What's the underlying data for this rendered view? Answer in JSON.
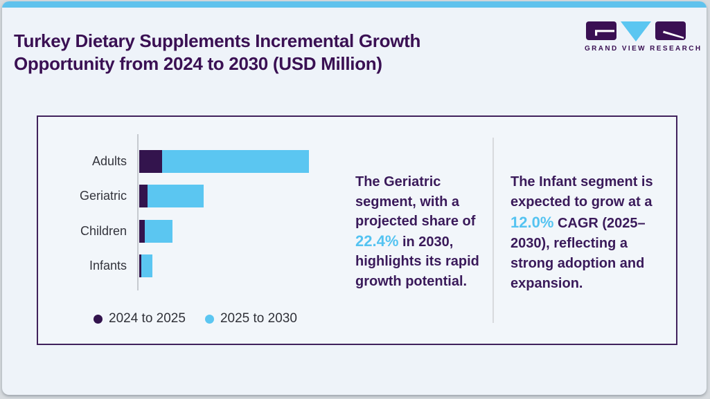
{
  "header": {
    "title": "Turkey Dietary Supplements Incremental Growth Opportunity from 2024 to 2030 (USD Million)",
    "logo_brand": "GRAND VIEW RESEARCH"
  },
  "colors": {
    "title_purple": "#3a1053",
    "series_purple": "#33144d",
    "accent_blue": "#5bc6f1",
    "topbar_blue": "#60c2ed"
  },
  "chart_data": {
    "type": "bar",
    "orientation": "horizontal",
    "stacked": true,
    "title": "Turkey Dietary Supplements Incremental Growth Opportunity from 2024 to 2030 (USD Million)",
    "xlabel": "",
    "ylabel": "",
    "value_axis_visible": false,
    "values_are_estimates": true,
    "grid": false,
    "legend_position": "bottom-left",
    "categories": [
      "Adults",
      "Geriatric",
      "Children",
      "Infants"
    ],
    "series": [
      {
        "name": "2024 to 2025",
        "color": "#33144d",
        "values": [
          33,
          12,
          8,
          3
        ]
      },
      {
        "name": "2025 to 2030",
        "color": "#5bc6f1",
        "values": [
          212,
          81,
          40,
          16
        ]
      }
    ]
  },
  "insights": {
    "geriatric": {
      "pre": "The Geriatric segment, with a projected share of ",
      "accent": "22.4%",
      "post": " in 2030, highlights its rapid growth potential."
    },
    "infant": {
      "pre": "The Infant segment is expected to grow at a ",
      "accent": "12.0%",
      "post": " CAGR (2025–2030), reflecting a strong adoption and expansion."
    }
  }
}
